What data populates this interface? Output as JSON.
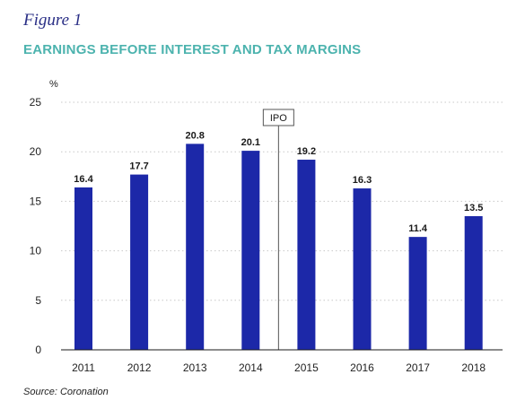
{
  "figure_label": "Figure 1",
  "source": "Source: Coronation",
  "colors": {
    "bar": "#1c28a8",
    "title": "#4cb3ae",
    "figure_label": "#2a2f86",
    "grid": "#c8c8c8",
    "annotation_line": "#555555"
  },
  "chart_data": {
    "type": "bar",
    "title": "EARNINGS BEFORE INTEREST AND TAX MARGINS",
    "ylabel": "%",
    "xlabel": "",
    "categories": [
      "2011",
      "2012",
      "2013",
      "2014",
      "2015",
      "2016",
      "2017",
      "2018"
    ],
    "values": [
      16.4,
      17.7,
      20.8,
      20.1,
      19.2,
      16.3,
      11.4,
      13.5
    ],
    "data_labels": [
      "16.4",
      "17.7",
      "20.8",
      "20.1",
      "19.2",
      "16.3",
      "11.4",
      "13.5"
    ],
    "ylim": [
      0,
      25
    ],
    "yticks": [
      0,
      5,
      10,
      15,
      20,
      25
    ],
    "grid": true,
    "annotations": [
      {
        "label": "IPO",
        "between": [
          "2014",
          "2015"
        ]
      }
    ]
  }
}
